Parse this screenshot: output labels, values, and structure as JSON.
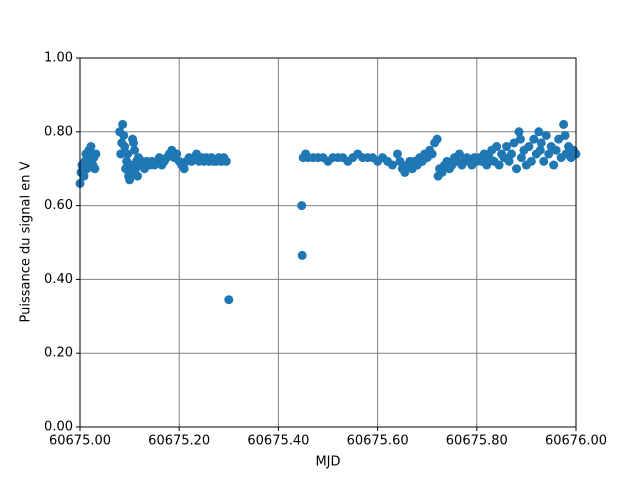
{
  "chart_data": {
    "type": "scatter",
    "x_label": "MJD",
    "y_label": "Puissance du signal en V",
    "xlim": [
      60675.0,
      60676.0
    ],
    "ylim": [
      0.0,
      1.0
    ],
    "xticks": [
      {
        "value": 60675.0,
        "label": "60675.00"
      },
      {
        "value": 60675.2,
        "label": "60675.20"
      },
      {
        "value": 60675.4,
        "label": "60675.40"
      },
      {
        "value": 60675.6,
        "label": "60675.60"
      },
      {
        "value": 60675.8,
        "label": "60675.80"
      },
      {
        "value": 60676.0,
        "label": "60676.00"
      }
    ],
    "yticks": [
      {
        "value": 0.0,
        "label": "0.00"
      },
      {
        "value": 0.2,
        "label": "0.20"
      },
      {
        "value": 0.4,
        "label": "0.40"
      },
      {
        "value": 0.6,
        "label": "0.60"
      },
      {
        "value": 0.8,
        "label": "0.80"
      },
      {
        "value": 1.0,
        "label": "1.00"
      }
    ],
    "grid": true,
    "color": "#1f77b4",
    "x": [
      60675.0,
      60675.002,
      60675.004,
      60675.006,
      60675.008,
      60675.01,
      60675.012,
      60675.014,
      60675.016,
      60675.018,
      60675.02,
      60675.022,
      60675.024,
      60675.026,
      60675.028,
      60675.03,
      60675.032,
      60675.08,
      60675.082,
      60675.084,
      60675.086,
      60675.088,
      60675.09,
      60675.092,
      60675.094,
      60675.096,
      60675.098,
      60675.1,
      60675.102,
      60675.104,
      60675.106,
      60675.108,
      60675.11,
      60675.112,
      60675.114,
      60675.116,
      60675.118,
      60675.12,
      60675.125,
      60675.13,
      60675.135,
      60675.14,
      60675.145,
      60675.15,
      60675.155,
      60675.16,
      60675.165,
      60675.17,
      60675.175,
      60675.18,
      60675.185,
      60675.19,
      60675.195,
      60675.2,
      60675.205,
      60675.21,
      60675.215,
      60675.22,
      60675.225,
      60675.23,
      60675.235,
      60675.24,
      60675.245,
      60675.25,
      60675.255,
      60675.26,
      60675.265,
      60675.27,
      60675.275,
      60675.28,
      60675.285,
      60675.29,
      60675.295,
      60675.3,
      60675.447,
      60675.448,
      60675.45,
      60675.455,
      60675.46,
      60675.47,
      60675.48,
      60675.49,
      60675.5,
      60675.51,
      60675.52,
      60675.53,
      60675.54,
      60675.55,
      60675.56,
      60675.57,
      60675.58,
      60675.59,
      60675.6,
      60675.61,
      60675.62,
      60675.63,
      60675.64,
      60675.645,
      60675.65,
      60675.655,
      60675.66,
      60675.665,
      60675.67,
      60675.675,
      60675.68,
      60675.685,
      60675.69,
      60675.695,
      60675.7,
      60675.705,
      60675.71,
      60675.715,
      60675.72,
      60675.722,
      60675.725,
      60675.73,
      60675.735,
      60675.74,
      60675.745,
      60675.75,
      60675.755,
      60675.76,
      60675.765,
      60675.77,
      60675.775,
      60675.78,
      60675.785,
      60675.79,
      60675.795,
      60675.8,
      60675.805,
      60675.81,
      60675.815,
      60675.82,
      60675.825,
      60675.83,
      60675.835,
      60675.84,
      60675.845,
      60675.85,
      60675.855,
      60675.86,
      60675.865,
      60675.87,
      60675.875,
      60675.88,
      60675.885,
      60675.888,
      60675.89,
      60675.895,
      60675.9,
      60675.905,
      60675.91,
      60675.915,
      60675.92,
      60675.925,
      60675.928,
      60675.93,
      60675.935,
      60675.94,
      60675.945,
      60675.95,
      60675.955,
      60675.96,
      60675.965,
      60675.97,
      60675.975,
      60675.978,
      60675.98,
      60675.985,
      60675.99,
      60675.995,
      60676.0
    ],
    "values": [
      0.66,
      0.69,
      0.71,
      0.7,
      0.68,
      0.72,
      0.74,
      0.7,
      0.73,
      0.75,
      0.72,
      0.76,
      0.74,
      0.71,
      0.73,
      0.7,
      0.74,
      0.8,
      0.74,
      0.77,
      0.82,
      0.79,
      0.76,
      0.7,
      0.72,
      0.74,
      0.68,
      0.67,
      0.71,
      0.69,
      0.78,
      0.77,
      0.75,
      0.7,
      0.72,
      0.68,
      0.73,
      0.71,
      0.72,
      0.7,
      0.72,
      0.71,
      0.72,
      0.71,
      0.72,
      0.73,
      0.71,
      0.72,
      0.73,
      0.74,
      0.75,
      0.73,
      0.74,
      0.72,
      0.71,
      0.7,
      0.72,
      0.73,
      0.72,
      0.73,
      0.74,
      0.72,
      0.73,
      0.72,
      0.73,
      0.72,
      0.73,
      0.72,
      0.72,
      0.73,
      0.72,
      0.73,
      0.72,
      0.345,
      0.6,
      0.465,
      0.73,
      0.74,
      0.73,
      0.73,
      0.73,
      0.73,
      0.72,
      0.73,
      0.73,
      0.73,
      0.72,
      0.73,
      0.74,
      0.73,
      0.73,
      0.73,
      0.72,
      0.73,
      0.72,
      0.71,
      0.74,
      0.72,
      0.7,
      0.69,
      0.71,
      0.72,
      0.7,
      0.72,
      0.71,
      0.73,
      0.72,
      0.74,
      0.73,
      0.75,
      0.74,
      0.77,
      0.78,
      0.68,
      0.7,
      0.69,
      0.71,
      0.72,
      0.7,
      0.71,
      0.73,
      0.72,
      0.74,
      0.71,
      0.72,
      0.73,
      0.72,
      0.71,
      0.73,
      0.72,
      0.73,
      0.72,
      0.74,
      0.71,
      0.73,
      0.75,
      0.72,
      0.76,
      0.71,
      0.74,
      0.73,
      0.76,
      0.72,
      0.74,
      0.77,
      0.7,
      0.8,
      0.78,
      0.73,
      0.75,
      0.71,
      0.76,
      0.72,
      0.78,
      0.74,
      0.8,
      0.75,
      0.77,
      0.72,
      0.79,
      0.74,
      0.76,
      0.71,
      0.75,
      0.78,
      0.73,
      0.82,
      0.79,
      0.74,
      0.76,
      0.73,
      0.75,
      0.74
    ]
  }
}
